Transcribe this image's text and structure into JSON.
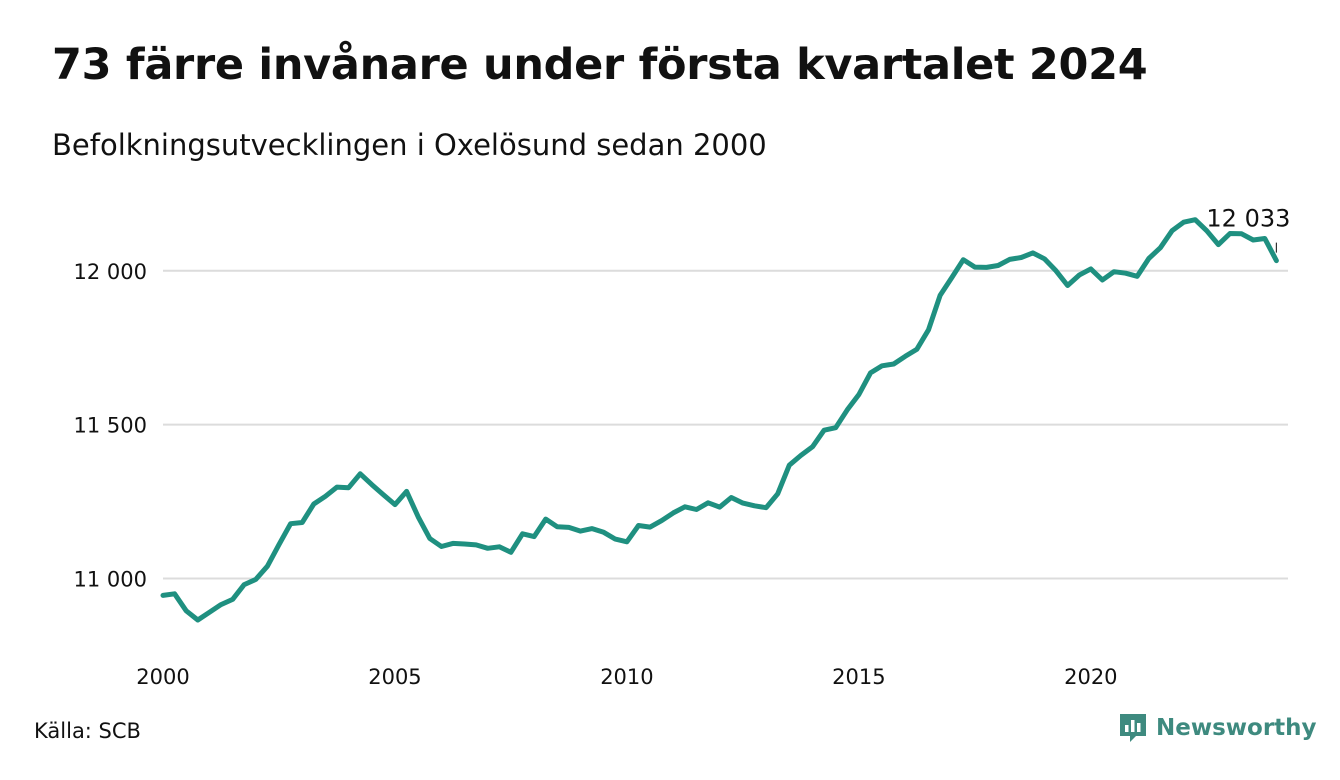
{
  "header": {
    "title": "73 färre invånare under första kvartalet 2024",
    "subtitle": "Befolkningsutvecklingen i Oxelösund sedan 2000"
  },
  "footer": {
    "source": "Källa: SCB",
    "brand": "Newsworthy",
    "brand_icon": "newsworthy-logo-icon"
  },
  "colors": {
    "line": "#1f9080",
    "grid": "#dcdcdc",
    "brand": "#3e8a7f"
  },
  "chart_data": {
    "type": "line",
    "title": "73 färre invånare under första kvartalet 2024",
    "subtitle": "Befolkningsutvecklingen i Oxelösund sedan 2000",
    "xlabel": "",
    "ylabel": "",
    "grid": "horizontal",
    "xlim": [
      2000,
      2024.25
    ],
    "ylim": [
      10800,
      12230
    ],
    "x_ticks": [
      {
        "value": 2000,
        "label": "2000"
      },
      {
        "value": 2005,
        "label": "2005"
      },
      {
        "value": 2010,
        "label": "2010"
      },
      {
        "value": 2015,
        "label": "2015"
      },
      {
        "value": 2020,
        "label": "2020"
      }
    ],
    "y_ticks": [
      {
        "value": 11000,
        "label": "11 000"
      },
      {
        "value": 11500,
        "label": "11 500"
      },
      {
        "value": 12000,
        "label": "12 000"
      }
    ],
    "annotation": {
      "label": "12 033",
      "x": "2024-Q1"
    },
    "series": [
      {
        "x": [
          "2000-Q1",
          "2000-Q2",
          "2000-Q3",
          "2000-Q4",
          "2001-Q1",
          "2001-Q2",
          "2001-Q3",
          "2001-Q4",
          "2002-Q1",
          "2002-Q2",
          "2002-Q3",
          "2002-Q4",
          "2003-Q1",
          "2003-Q2",
          "2003-Q3",
          "2003-Q4",
          "2004-Q1",
          "2004-Q2",
          "2004-Q3",
          "2004-Q4",
          "2005-Q1",
          "2005-Q2",
          "2005-Q3",
          "2005-Q4",
          "2006-Q1",
          "2006-Q2",
          "2006-Q3",
          "2006-Q4",
          "2007-Q1",
          "2007-Q2",
          "2007-Q3",
          "2007-Q4",
          "2008-Q1",
          "2008-Q2",
          "2008-Q3",
          "2008-Q4",
          "2009-Q1",
          "2009-Q2",
          "2009-Q3",
          "2009-Q4",
          "2010-Q1",
          "2010-Q2",
          "2010-Q3",
          "2010-Q4",
          "2011-Q1",
          "2011-Q2",
          "2011-Q3",
          "2011-Q4",
          "2012-Q1",
          "2012-Q2",
          "2012-Q3",
          "2012-Q4",
          "2013-Q1",
          "2013-Q2",
          "2013-Q3",
          "2013-Q4",
          "2014-Q1",
          "2014-Q2",
          "2014-Q3",
          "2014-Q4",
          "2015-Q1",
          "2015-Q2",
          "2015-Q3",
          "2015-Q4",
          "2016-Q1",
          "2016-Q2",
          "2016-Q3",
          "2016-Q4",
          "2017-Q1",
          "2017-Q2",
          "2017-Q3",
          "2017-Q4",
          "2018-Q1",
          "2018-Q2",
          "2018-Q3",
          "2018-Q4",
          "2019-Q1",
          "2019-Q2",
          "2019-Q3",
          "2019-Q4",
          "2020-Q1",
          "2020-Q2",
          "2020-Q3",
          "2020-Q4",
          "2021-Q1",
          "2021-Q2",
          "2021-Q3",
          "2021-Q4",
          "2022-Q1",
          "2022-Q2",
          "2022-Q3",
          "2022-Q4",
          "2023-Q1",
          "2023-Q2",
          "2023-Q3",
          "2023-Q4",
          "2024-Q1"
        ],
        "values": [
          10945,
          10950,
          10895,
          10865,
          10890,
          10915,
          10932,
          10980,
          10997,
          11040,
          11110,
          11178,
          11182,
          11242,
          11267,
          11297,
          11295,
          11340,
          11305,
          11272,
          11240,
          11283,
          11200,
          11130,
          11104,
          11114,
          11112,
          11109,
          11098,
          11103,
          11085,
          11145,
          11136,
          11193,
          11168,
          11166,
          11154,
          11162,
          11150,
          11128,
          11119,
          11172,
          11167,
          11188,
          11213,
          11233,
          11224,
          11246,
          11232,
          11263,
          11245,
          11236,
          11230,
          11275,
          11368,
          11400,
          11428,
          11482,
          11490,
          11548,
          11598,
          11668,
          11691,
          11697,
          11722,
          11745,
          11808,
          11920,
          11977,
          12036,
          12012,
          12011,
          12017,
          12037,
          12043,
          12058,
          12039,
          12000,
          11952,
          11986,
          12006,
          11970,
          11997,
          11992,
          11982,
          12040,
          12075,
          12130,
          12158,
          12166,
          12130,
          12085,
          12121,
          12120,
          12100,
          12105,
          12033
        ]
      }
    ]
  }
}
